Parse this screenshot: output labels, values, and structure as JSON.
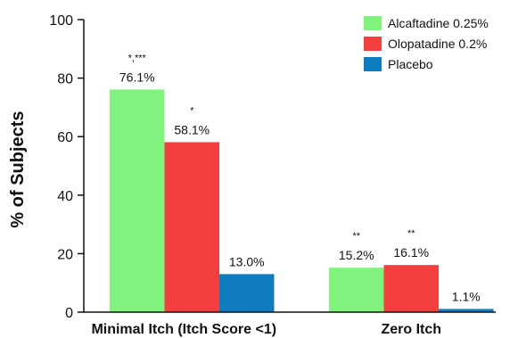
{
  "chart_data": {
    "type": "bar",
    "title": "",
    "xlabel": "",
    "ylabel": "% of Subjects",
    "ylim": [
      0,
      100
    ],
    "yticks": [
      0,
      20,
      40,
      60,
      80,
      100
    ],
    "grid": false,
    "legend_position": "top-right",
    "categories": [
      "Minimal Itch (Itch Score <1)",
      "Zero Itch"
    ],
    "series": [
      {
        "name": "Alcaftadine 0.25%",
        "color": "#80f37f",
        "values": [
          76.1,
          15.2
        ],
        "labels": [
          "76.1%",
          "15.2%"
        ],
        "significance": [
          "*,***",
          "**"
        ]
      },
      {
        "name": "Olopatadine 0.2%",
        "color": "#f3403f",
        "values": [
          58.1,
          16.1
        ],
        "labels": [
          "58.1%",
          "16.1%"
        ],
        "significance": [
          "*",
          "**"
        ]
      },
      {
        "name": "Placebo",
        "color": "#0f7bc0",
        "values": [
          13.0,
          1.1
        ],
        "labels": [
          "13.0%",
          "1.1%"
        ],
        "significance": [
          "",
          ""
        ]
      }
    ]
  }
}
